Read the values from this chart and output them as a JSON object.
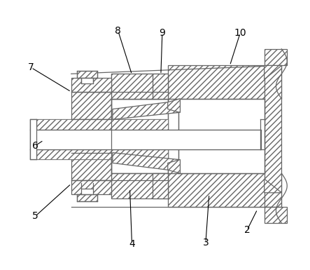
{
  "background_color": "#ffffff",
  "line_color": "#666666",
  "figsize": [
    4.43,
    3.85
  ],
  "dpi": 100,
  "annotations": [
    [
      "2",
      355,
      330,
      370,
      300
    ],
    [
      "3",
      295,
      348,
      300,
      278
    ],
    [
      "4",
      188,
      350,
      185,
      270
    ],
    [
      "5",
      48,
      310,
      100,
      263
    ],
    [
      "6",
      48,
      208,
      60,
      200
    ],
    [
      "7",
      42,
      95,
      100,
      130
    ],
    [
      "8",
      168,
      42,
      188,
      105
    ],
    [
      "9",
      232,
      45,
      230,
      105
    ],
    [
      "10",
      345,
      45,
      330,
      92
    ]
  ]
}
